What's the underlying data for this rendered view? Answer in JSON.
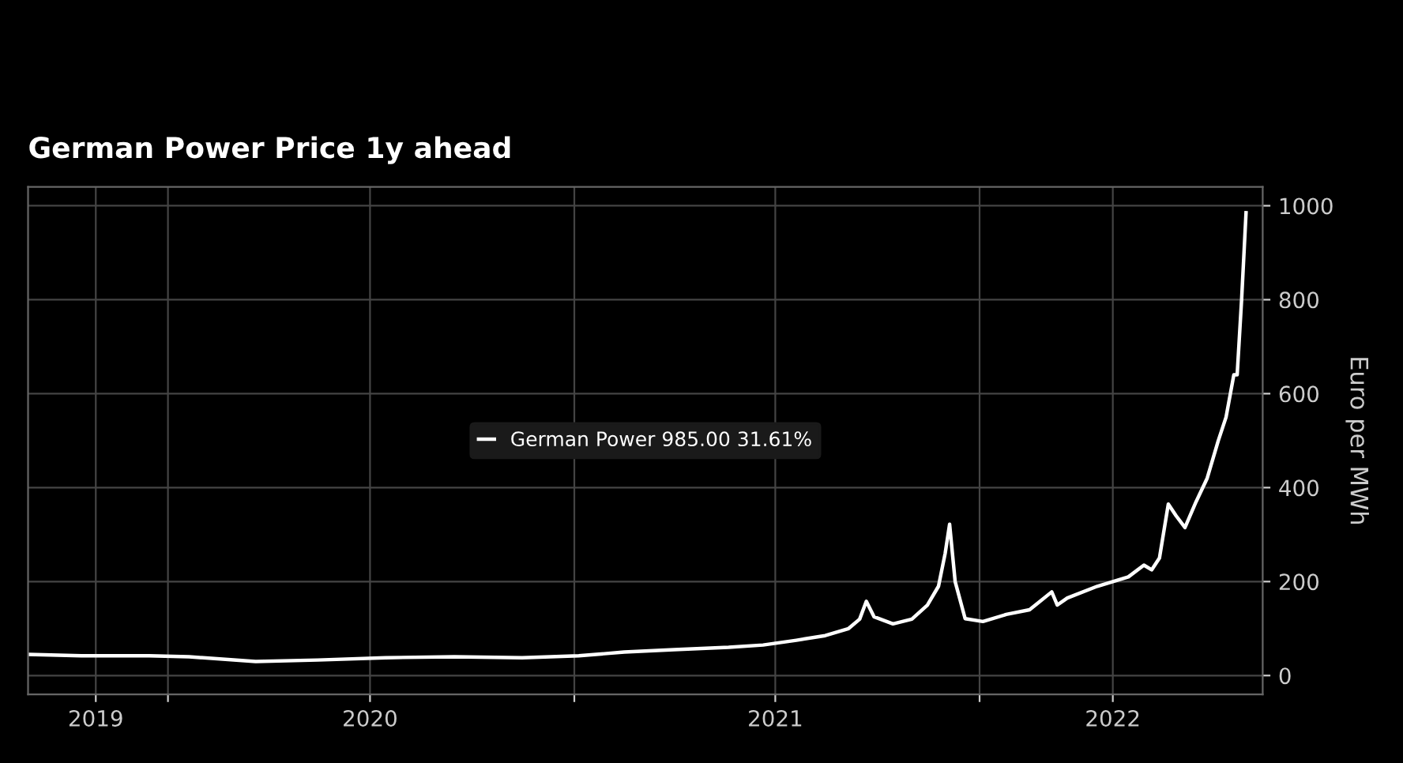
{
  "chart_data": {
    "type": "line",
    "title": "German Power Price 1y ahead",
    "ylabel": "Euro per MWh",
    "x": [
      "2019-08-28",
      "2019-10-15",
      "2019-12-15",
      "2020-01-20",
      "2020-03-20",
      "2020-05-15",
      "2020-07-15",
      "2020-09-15",
      "2020-11-15",
      "2021-01-05",
      "2021-02-15",
      "2021-04-01",
      "2021-05-20",
      "2021-06-20",
      "2021-07-20",
      "2021-08-15",
      "2021-09-05",
      "2021-09-15",
      "2021-09-21",
      "2021-09-28",
      "2021-10-15",
      "2021-11-01",
      "2021-11-15",
      "2021-11-25",
      "2021-12-01",
      "2021-12-05",
      "2021-12-10",
      "2021-12-19",
      "2022-01-04",
      "2022-01-25",
      "2022-02-15",
      "2022-03-07",
      "2022-03-12",
      "2022-03-21",
      "2022-04-17",
      "2022-05-15",
      "2022-05-29",
      "2022-06-05",
      "2022-06-12",
      "2022-06-20",
      "2022-06-27",
      "2022-07-05",
      "2022-07-15",
      "2022-07-25",
      "2022-08-04",
      "2022-08-11",
      "2022-08-18",
      "2022-08-21",
      "2022-08-25",
      "2022-08-29"
    ],
    "series": [
      {
        "name": "German Power 985.00 31.61%",
        "color": "#ffffff",
        "values": [
          45,
          42,
          42,
          40,
          30,
          33,
          38,
          40,
          38,
          42,
          50,
          55,
          60,
          65,
          75,
          85,
          100,
          120,
          158,
          125,
          110,
          120,
          150,
          190,
          260,
          322,
          200,
          121,
          115,
          130,
          140,
          178,
          150,
          165,
          190,
          210,
          235,
          225,
          250,
          365,
          340,
          315,
          370,
          420,
          500,
          550,
          640,
          640,
          800,
          985
        ]
      }
    ],
    "xlim": [
      "2019-08-28",
      "2022-09-13"
    ],
    "xticks": [
      {
        "value": "2019-10-28",
        "label": "2019"
      },
      {
        "value": "2020-01-01",
        "label": null
      },
      {
        "value": "2020-07-01",
        "label": "2020"
      },
      {
        "value": "2021-01-01",
        "label": null
      },
      {
        "value": "2021-07-01",
        "label": "2021"
      },
      {
        "value": "2022-01-01",
        "label": null
      },
      {
        "value": "2022-05-01",
        "label": "2022"
      }
    ],
    "ylim": [
      -40,
      1040
    ],
    "yticks": [
      0,
      200,
      400,
      600,
      800,
      1000
    ],
    "grid": true,
    "legend": "center",
    "marker": "none",
    "line_style": "solid"
  }
}
